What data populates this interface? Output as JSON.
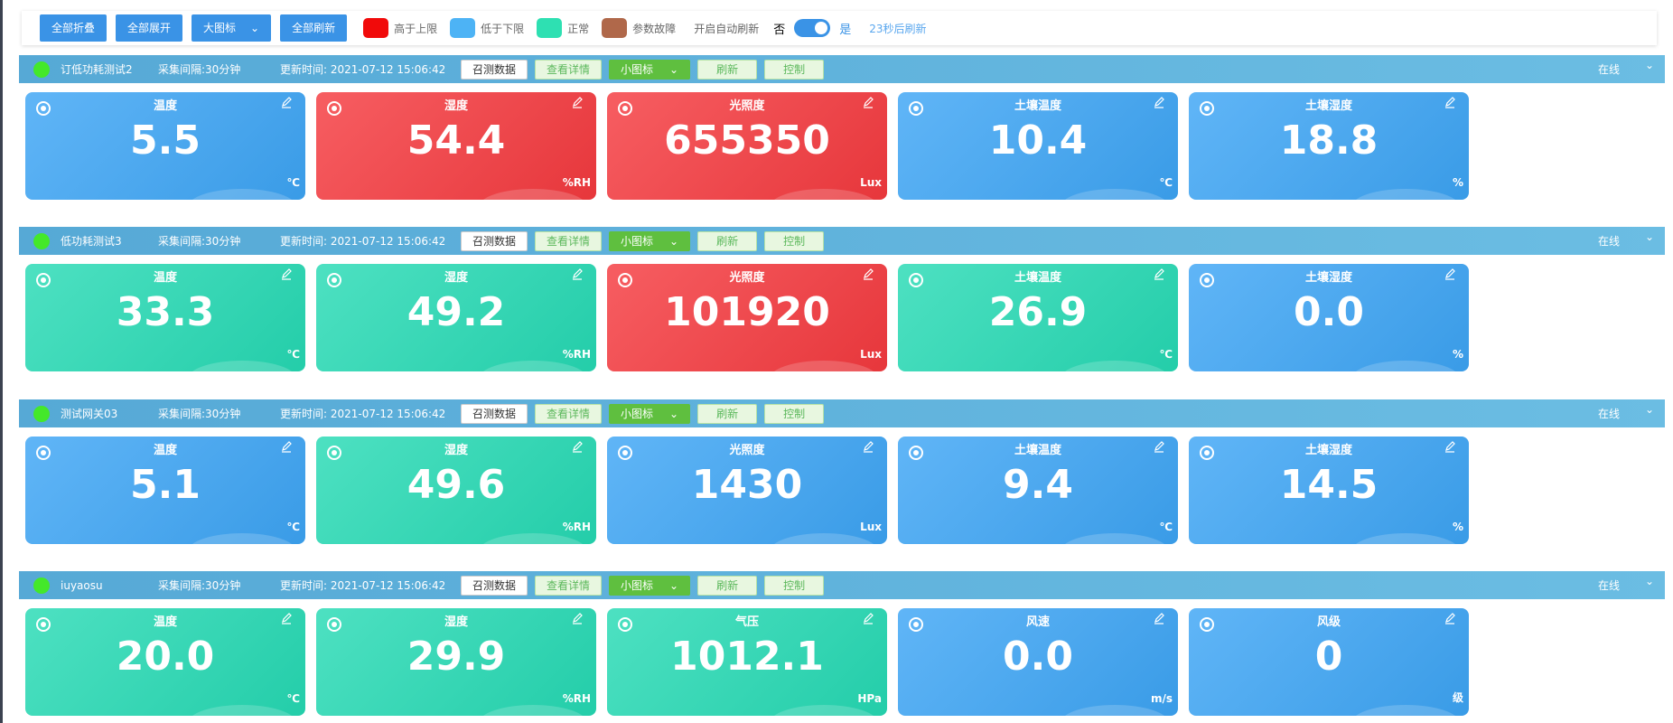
{
  "toolbar": {
    "collapse": "全部折叠",
    "expand": "全部展开",
    "view": "大图标",
    "refresh": "全部刷新",
    "legend": [
      {
        "label": "高于上限",
        "color": "#f10a0a"
      },
      {
        "label": "低于下限",
        "color": "#4db3f5"
      },
      {
        "label": "正常",
        "color": "#2ee0b2"
      },
      {
        "label": "参数故障",
        "color": "#b0684a"
      }
    ],
    "auto_refresh": "开启自动刷新",
    "off": "否",
    "on": "是",
    "countdown": "23秒后刷新"
  },
  "devices": [
    {
      "name": "订低功耗测试2",
      "interval": "采集间隔:30分钟",
      "updated": "更新时间: 2021-07-12 15:06:42",
      "call": "召测数据",
      "detail": "查看详情",
      "icon_size": "小图标",
      "refresh": "刷新",
      "control": "控制",
      "status": "在线",
      "cards": [
        {
          "label": "温度",
          "value": "5.5",
          "unit": "℃",
          "color": "#3da5f5"
        },
        {
          "label": "湿度",
          "value": "54.4",
          "unit": "%RH",
          "color": "#f53a3f"
        },
        {
          "label": "光照度",
          "value": "655350",
          "unit": "Lux",
          "color": "#f53a3f"
        },
        {
          "label": "土壤温度",
          "value": "10.4",
          "unit": "℃",
          "color": "#3da5f5"
        },
        {
          "label": "土壤湿度",
          "value": "18.8",
          "unit": "%",
          "color": "#3da5f5"
        }
      ]
    },
    {
      "name": "低功耗测试3",
      "interval": "采集间隔:30分钟",
      "updated": "更新时间: 2021-07-12 15:06:42",
      "call": "召测数据",
      "detail": "查看详情",
      "icon_size": "小图标",
      "refresh": "刷新",
      "control": "控制",
      "status": "在线",
      "cards": [
        {
          "label": "温度",
          "value": "33.3",
          "unit": "℃",
          "color": "#26dab4"
        },
        {
          "label": "湿度",
          "value": "49.2",
          "unit": "%RH",
          "color": "#26dab4"
        },
        {
          "label": "光照度",
          "value": "101920",
          "unit": "Lux",
          "color": "#f53a3f"
        },
        {
          "label": "土壤温度",
          "value": "26.9",
          "unit": "℃",
          "color": "#26dab4"
        },
        {
          "label": "土壤湿度",
          "value": "0.0",
          "unit": "%",
          "color": "#3da5f5"
        }
      ]
    },
    {
      "name": "测试网关03",
      "interval": "采集间隔:30分钟",
      "updated": "更新时间: 2021-07-12 15:06:42",
      "call": "召测数据",
      "detail": "查看详情",
      "icon_size": "小图标",
      "refresh": "刷新",
      "control": "控制",
      "status": "在线",
      "cards": [
        {
          "label": "温度",
          "value": "5.1",
          "unit": "℃",
          "color": "#3da5f5"
        },
        {
          "label": "湿度",
          "value": "49.6",
          "unit": "%RH",
          "color": "#26dab4"
        },
        {
          "label": "光照度",
          "value": "1430",
          "unit": "Lux",
          "color": "#3da5f5"
        },
        {
          "label": "土壤温度",
          "value": "9.4",
          "unit": "℃",
          "color": "#3da5f5"
        },
        {
          "label": "土壤湿度",
          "value": "14.5",
          "unit": "%",
          "color": "#3da5f5"
        }
      ]
    },
    {
      "name": "iuyaosu",
      "interval": "采集间隔:30分钟",
      "updated": "更新时间: 2021-07-12 15:06:42",
      "call": "召测数据",
      "detail": "查看详情",
      "icon_size": "小图标",
      "refresh": "刷新",
      "control": "控制",
      "status": "在线",
      "cards": [
        {
          "label": "温度",
          "value": "20.0",
          "unit": "℃",
          "color": "#26dab4"
        },
        {
          "label": "湿度",
          "value": "29.9",
          "unit": "%RH",
          "color": "#26dab4"
        },
        {
          "label": "气压",
          "value": "1012.1",
          "unit": "HPa",
          "color": "#26dab4"
        },
        {
          "label": "风速",
          "value": "0.0",
          "unit": "m/s",
          "color": "#3da5f5"
        },
        {
          "label": "风级",
          "value": "0",
          "unit": "级",
          "color": "#3da5f5"
        }
      ]
    }
  ]
}
